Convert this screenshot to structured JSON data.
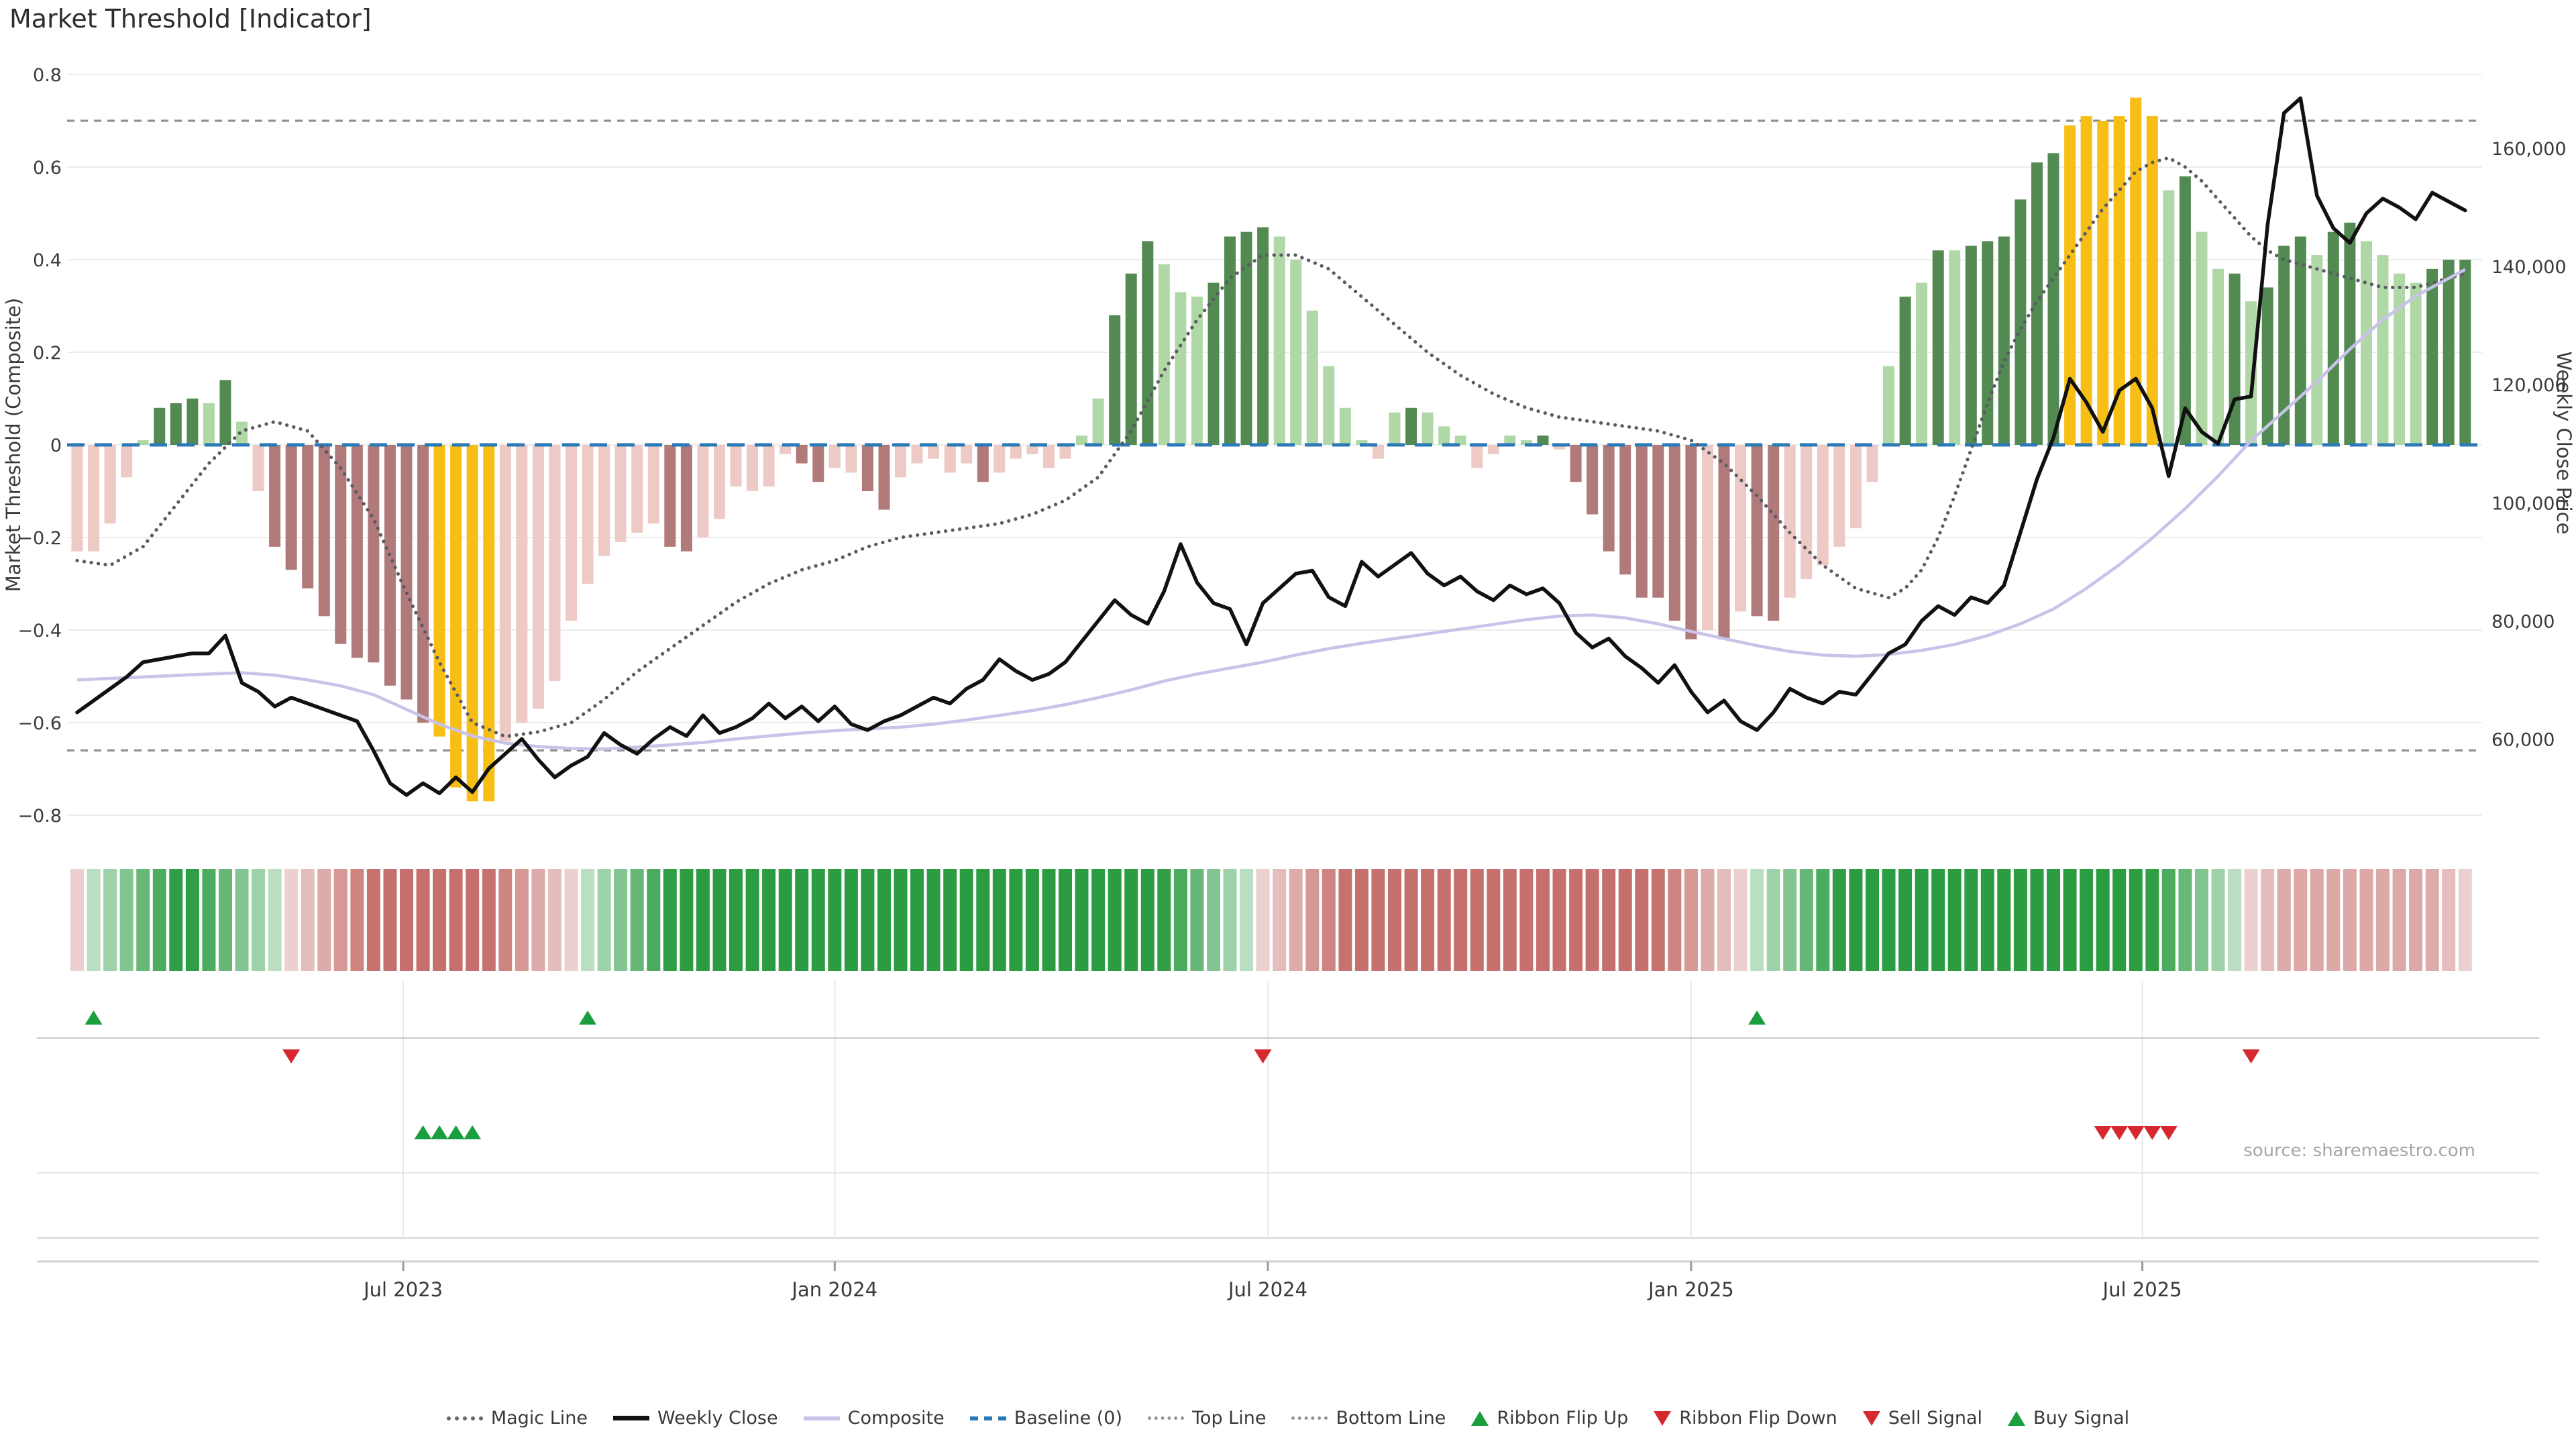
{
  "title": "Market Threshold [Indicator]",
  "source": "source: sharemaestro.com",
  "left_axis": {
    "label": "Market Threshold (Composite)",
    "tick_labels": [
      "0.8",
      "0.6",
      "0.4",
      "0.2",
      "0",
      "−0.2",
      "−0.4",
      "−0.6",
      "−0.8"
    ],
    "tick_values": [
      0.8,
      0.6,
      0.4,
      0.2,
      0,
      -0.2,
      -0.4,
      -0.6,
      -0.8
    ]
  },
  "right_axis": {
    "label": "Weekly Close Price",
    "tick_labels": [
      "160,000",
      "140,000",
      "120,000",
      "100,000",
      "80,000",
      "60,000"
    ],
    "tick_values": [
      160000,
      140000,
      120000,
      100000,
      80000,
      60000
    ]
  },
  "x_axis": {
    "ticks": [
      {
        "label": "Jul 2023",
        "i": 19.8
      },
      {
        "label": "Jan 2024",
        "i": 46.0
      },
      {
        "label": "Jul 2024",
        "i": 72.3
      },
      {
        "label": "Jan 2025",
        "i": 98.0
      },
      {
        "label": "Jul 2025",
        "i": 125.4
      }
    ]
  },
  "colors": {
    "bar_pale_red": "#edcac5",
    "bar_dark_red": "#b07a7a",
    "bar_extreme_yellow": "#f7be16",
    "bar_light_green": "#b0d8a6",
    "bar_dark_green": "#528a52",
    "baseline_blue": "#2b7ab8",
    "weekly_close_black": "#111111",
    "composite_purple": "#c9c2e9",
    "magic_line_gray": "#5a5a64",
    "top_bottom_gray": "#909090",
    "grid_gray": "#ececec",
    "signal_green": "#1b9e3e",
    "signal_red": "#d7282f",
    "ribbon_green_base": [
      44,
      156,
      66
    ],
    "ribbon_red_base": [
      197,
      112,
      108
    ]
  },
  "legend": [
    {
      "label": "Magic Line",
      "swatch": "dotted"
    },
    {
      "label": "Weekly Close",
      "swatch": "solid-black"
    },
    {
      "label": "Composite",
      "swatch": "solid-purple"
    },
    {
      "label": "Baseline (0)",
      "swatch": "dashed-blue"
    },
    {
      "label": "Top Line",
      "swatch": "dotted-light"
    },
    {
      "label": "Bottom Line",
      "swatch": "dotted-light"
    },
    {
      "label": "Ribbon Flip Up",
      "swatch": "tri-up"
    },
    {
      "label": "Ribbon Flip Down",
      "swatch": "tri-down"
    },
    {
      "label": "Sell Signal",
      "swatch": "tri-down"
    },
    {
      "label": "Buy Signal",
      "swatch": "tri-up"
    }
  ],
  "chart_data": {
    "type": "bar+line",
    "weeks": 146,
    "period": "weekly, ~Mar 2023 to ~Nov 2025",
    "left_range": [
      -0.87,
      0.87
    ],
    "top_line": 0.7,
    "bottom_line": -0.66,
    "baseline": 0,
    "threshold_values": [
      -0.23,
      -0.23,
      -0.17,
      -0.07,
      0.01,
      0.08,
      0.09,
      0.1,
      0.09,
      0.14,
      0.05,
      -0.1,
      -0.22,
      -0.27,
      -0.31,
      -0.37,
      -0.43,
      -0.46,
      -0.47,
      -0.52,
      -0.55,
      -0.6,
      -0.63,
      -0.74,
      -0.77,
      -0.77,
      -0.64,
      -0.6,
      -0.57,
      -0.51,
      -0.38,
      -0.3,
      -0.24,
      -0.21,
      -0.19,
      -0.17,
      -0.22,
      -0.23,
      -0.2,
      -0.16,
      -0.09,
      -0.1,
      -0.09,
      -0.02,
      -0.04,
      -0.08,
      -0.05,
      -0.06,
      -0.1,
      -0.14,
      -0.07,
      -0.04,
      -0.03,
      -0.06,
      -0.04,
      -0.08,
      -0.06,
      -0.03,
      -0.02,
      -0.05,
      -0.03,
      0.02,
      0.1,
      0.28,
      0.37,
      0.44,
      0.39,
      0.33,
      0.32,
      0.35,
      0.45,
      0.46,
      0.47,
      0.45,
      0.4,
      0.29,
      0.17,
      0.08,
      0.01,
      -0.03,
      0.07,
      0.08,
      0.07,
      0.04,
      0.02,
      -0.05,
      -0.02,
      0.02,
      0.01,
      0.02,
      -0.01,
      -0.08,
      -0.15,
      -0.23,
      -0.28,
      -0.33,
      -0.33,
      -0.38,
      -0.42,
      -0.4,
      -0.42,
      -0.36,
      -0.37,
      -0.38,
      -0.33,
      -0.29,
      -0.26,
      -0.22,
      -0.18,
      -0.08,
      0.17,
      0.32,
      0.35,
      0.42,
      0.42,
      0.43,
      0.44,
      0.45,
      0.53,
      0.61,
      0.63,
      0.69,
      0.71,
      0.7,
      0.71,
      0.75,
      0.71,
      0.55,
      0.58,
      0.46,
      0.38,
      0.37,
      0.31,
      0.34,
      0.43,
      0.45,
      0.41,
      0.46,
      0.48,
      0.44,
      0.41,
      0.37,
      0.35,
      0.38,
      0.4,
      0.4
    ],
    "threshold_colors": [
      "P",
      "P",
      "P",
      "P",
      "L",
      "G",
      "G",
      "G",
      "L",
      "G",
      "L",
      "P",
      "R",
      "R",
      "R",
      "R",
      "R",
      "R",
      "R",
      "R",
      "R",
      "R",
      "Y",
      "Y",
      "Y",
      "Y",
      "P",
      "P",
      "P",
      "P",
      "P",
      "P",
      "P",
      "P",
      "P",
      "P",
      "R",
      "R",
      "P",
      "P",
      "P",
      "P",
      "P",
      "P",
      "R",
      "R",
      "P",
      "P",
      "R",
      "R",
      "P",
      "P",
      "P",
      "P",
      "P",
      "R",
      "P",
      "P",
      "P",
      "P",
      "P",
      "L",
      "L",
      "G",
      "G",
      "G",
      "L",
      "L",
      "L",
      "G",
      "G",
      "G",
      "G",
      "L",
      "L",
      "L",
      "L",
      "L",
      "L",
      "P",
      "L",
      "G",
      "L",
      "L",
      "L",
      "P",
      "P",
      "L",
      "L",
      "G",
      "P",
      "R",
      "R",
      "R",
      "R",
      "R",
      "R",
      "R",
      "R",
      "P",
      "R",
      "P",
      "R",
      "R",
      "P",
      "P",
      "P",
      "P",
      "P",
      "P",
      "L",
      "G",
      "L",
      "G",
      "L",
      "G",
      "G",
      "G",
      "G",
      "G",
      "G",
      "Y",
      "Y",
      "Y",
      "Y",
      "Y",
      "Y",
      "L",
      "G",
      "L",
      "L",
      "G",
      "L",
      "G",
      "G",
      "G",
      "L",
      "G",
      "G",
      "L",
      "L",
      "L",
      "L",
      "G",
      "G",
      "G"
    ],
    "weekly_close": [
      64500,
      66500,
      68500,
      70500,
      73000,
      73500,
      74000,
      74500,
      74500,
      77500,
      69500,
      68000,
      65500,
      67000,
      66000,
      65000,
      64000,
      63000,
      58000,
      52500,
      50500,
      52500,
      50800,
      53500,
      51000,
      55000,
      57500,
      60000,
      56500,
      53500,
      55500,
      57000,
      61000,
      59000,
      57500,
      60000,
      62000,
      60500,
      64000,
      61000,
      62000,
      63500,
      66000,
      63500,
      65500,
      63000,
      65500,
      62500,
      61500,
      63000,
      64000,
      65500,
      67000,
      66000,
      68500,
      70000,
      73500,
      71500,
      70000,
      71000,
      73000,
      76500,
      80000,
      83500,
      81000,
      79500,
      85000,
      93000,
      86500,
      83000,
      82000,
      76000,
      83000,
      85500,
      88000,
      88500,
      84000,
      82500,
      90000,
      87500,
      89500,
      91500,
      88000,
      86000,
      87500,
      85000,
      83500,
      86000,
      84500,
      85500,
      83000,
      78000,
      75500,
      77000,
      74000,
      72000,
      69500,
      72500,
      68000,
      64500,
      66500,
      63000,
      61500,
      64500,
      68500,
      67000,
      66000,
      68000,
      67500,
      71000,
      74500,
      76000,
      80000,
      82500,
      81000,
      84000,
      83000,
      86000,
      95000,
      104000,
      111000,
      121000,
      117000,
      112000,
      119000,
      121000,
      116000,
      104500,
      116000,
      112000,
      110000,
      117500,
      118000,
      147000,
      166000,
      168500,
      152000,
      146500,
      144000,
      149000,
      151500,
      150000,
      148000,
      152500,
      151000,
      149500
    ],
    "magic_line_keypoints": [
      [
        0,
        -0.25
      ],
      [
        2,
        -0.26
      ],
      [
        4,
        -0.22
      ],
      [
        6,
        -0.13
      ],
      [
        8,
        -0.04
      ],
      [
        10,
        0.03
      ],
      [
        12,
        0.05
      ],
      [
        14,
        0.03
      ],
      [
        16,
        -0.05
      ],
      [
        18,
        -0.16
      ],
      [
        20,
        -0.32
      ],
      [
        22,
        -0.47
      ],
      [
        24,
        -0.6
      ],
      [
        26,
        -0.63
      ],
      [
        28,
        -0.62
      ],
      [
        30,
        -0.6
      ],
      [
        32,
        -0.55
      ],
      [
        34,
        -0.49
      ],
      [
        36,
        -0.44
      ],
      [
        38,
        -0.39
      ],
      [
        40,
        -0.34
      ],
      [
        42,
        -0.3
      ],
      [
        44,
        -0.27
      ],
      [
        46,
        -0.25
      ],
      [
        48,
        -0.22
      ],
      [
        50,
        -0.2
      ],
      [
        52,
        -0.19
      ],
      [
        54,
        -0.18
      ],
      [
        56,
        -0.17
      ],
      [
        58,
        -0.15
      ],
      [
        60,
        -0.12
      ],
      [
        62,
        -0.07
      ],
      [
        64,
        0.03
      ],
      [
        66,
        0.16
      ],
      [
        68,
        0.27
      ],
      [
        70,
        0.36
      ],
      [
        72,
        0.41
      ],
      [
        74,
        0.41
      ],
      [
        76,
        0.38
      ],
      [
        78,
        0.32
      ],
      [
        80,
        0.26
      ],
      [
        82,
        0.2
      ],
      [
        84,
        0.15
      ],
      [
        86,
        0.11
      ],
      [
        88,
        0.08
      ],
      [
        90,
        0.06
      ],
      [
        92,
        0.05
      ],
      [
        94,
        0.04
      ],
      [
        96,
        0.03
      ],
      [
        98,
        0.01
      ],
      [
        100,
        -0.04
      ],
      [
        102,
        -0.11
      ],
      [
        104,
        -0.19
      ],
      [
        106,
        -0.26
      ],
      [
        108,
        -0.31
      ],
      [
        110,
        -0.33
      ],
      [
        111,
        -0.31
      ],
      [
        112,
        -0.27
      ],
      [
        113,
        -0.2
      ],
      [
        114,
        -0.11
      ],
      [
        115,
        -0.01
      ],
      [
        116,
        0.09
      ],
      [
        117,
        0.18
      ],
      [
        118,
        0.25
      ],
      [
        119,
        0.31
      ],
      [
        120,
        0.36
      ],
      [
        121,
        0.41
      ],
      [
        122,
        0.46
      ],
      [
        123,
        0.51
      ],
      [
        124,
        0.55
      ],
      [
        125,
        0.59
      ],
      [
        126,
        0.61
      ],
      [
        127,
        0.62
      ],
      [
        128,
        0.6
      ],
      [
        129,
        0.57
      ],
      [
        130,
        0.53
      ],
      [
        131,
        0.49
      ],
      [
        132,
        0.45
      ],
      [
        133,
        0.42
      ],
      [
        134,
        0.4
      ],
      [
        136,
        0.38
      ],
      [
        138,
        0.36
      ],
      [
        140,
        0.34
      ],
      [
        142,
        0.34
      ],
      [
        144,
        0.36
      ],
      [
        145,
        0.37
      ]
    ],
    "composite_keypoints": [
      [
        0,
        70000
      ],
      [
        4,
        70500
      ],
      [
        8,
        71000
      ],
      [
        10,
        71200
      ],
      [
        12,
        70800
      ],
      [
        14,
        70000
      ],
      [
        16,
        69000
      ],
      [
        18,
        67500
      ],
      [
        20,
        65000
      ],
      [
        22,
        62500
      ],
      [
        24,
        60500
      ],
      [
        26,
        59300
      ],
      [
        28,
        58700
      ],
      [
        30,
        58400
      ],
      [
        32,
        58300
      ],
      [
        34,
        58600
      ],
      [
        36,
        59000
      ],
      [
        38,
        59400
      ],
      [
        40,
        60000
      ],
      [
        42,
        60500
      ],
      [
        44,
        61000
      ],
      [
        46,
        61400
      ],
      [
        48,
        61700
      ],
      [
        50,
        62000
      ],
      [
        52,
        62500
      ],
      [
        54,
        63200
      ],
      [
        56,
        64000
      ],
      [
        58,
        64800
      ],
      [
        60,
        65800
      ],
      [
        62,
        67000
      ],
      [
        64,
        68300
      ],
      [
        66,
        69800
      ],
      [
        68,
        71000
      ],
      [
        70,
        72000
      ],
      [
        72,
        73000
      ],
      [
        74,
        74200
      ],
      [
        76,
        75300
      ],
      [
        78,
        76200
      ],
      [
        80,
        77000
      ],
      [
        82,
        77800
      ],
      [
        84,
        78600
      ],
      [
        86,
        79400
      ],
      [
        88,
        80200
      ],
      [
        90,
        80800
      ],
      [
        92,
        81000
      ],
      [
        94,
        80500
      ],
      [
        96,
        79500
      ],
      [
        98,
        78200
      ],
      [
        100,
        77000
      ],
      [
        102,
        75800
      ],
      [
        104,
        74800
      ],
      [
        106,
        74200
      ],
      [
        108,
        74000
      ],
      [
        110,
        74300
      ],
      [
        112,
        75000
      ],
      [
        114,
        76000
      ],
      [
        116,
        77500
      ],
      [
        118,
        79500
      ],
      [
        120,
        82000
      ],
      [
        122,
        85500
      ],
      [
        124,
        89500
      ],
      [
        126,
        94000
      ],
      [
        128,
        99000
      ],
      [
        130,
        104500
      ],
      [
        132,
        110500
      ],
      [
        134,
        115500
      ],
      [
        136,
        120500
      ],
      [
        138,
        126000
      ],
      [
        140,
        131000
      ],
      [
        142,
        135000
      ],
      [
        144,
        138000
      ],
      [
        145,
        139500
      ]
    ],
    "ribbon_runs": [
      {
        "start": 0,
        "end": 0,
        "dir": "red",
        "max": 0.35
      },
      {
        "start": 1,
        "end": 12,
        "dir": "green",
        "max": 1
      },
      {
        "start": 13,
        "end": 30,
        "dir": "red",
        "max": 1
      },
      {
        "start": 31,
        "end": 71,
        "dir": "green",
        "max": 1
      },
      {
        "start": 72,
        "end": 101,
        "dir": "red",
        "max": 1
      },
      {
        "start": 102,
        "end": 131,
        "dir": "green",
        "max": 1
      },
      {
        "start": 132,
        "end": 145,
        "dir": "red",
        "max": 0.6
      }
    ],
    "signals": {
      "ribbon_flip_up": [
        1,
        31,
        102
      ],
      "ribbon_flip_down": [
        13,
        72,
        132
      ],
      "buy": [
        21,
        22,
        23,
        24
      ],
      "sell": [
        123,
        124,
        125,
        126,
        127
      ]
    }
  }
}
